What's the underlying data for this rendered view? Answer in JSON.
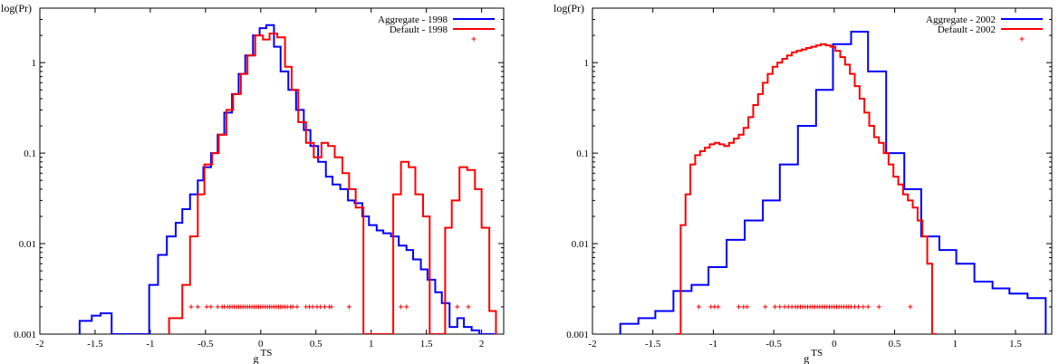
{
  "chart_data": [
    {
      "type": "line",
      "step": true,
      "title": "",
      "ylabel": "log(Pr)",
      "xlabel": "g",
      "xlabel_sub": "TS",
      "xlim": [
        -2,
        2.2
      ],
      "ylim": [
        0.001,
        4
      ],
      "yscale": "log",
      "xticks": [
        -2,
        -1.5,
        -1,
        -0.5,
        0,
        0.5,
        1,
        1.5,
        2
      ],
      "xtick_labels": [
        "-2",
        "-1.5",
        "-1",
        "-0.5",
        "0",
        "0.5",
        "1",
        "1.5",
        "2"
      ],
      "yticks": [
        0.001,
        0.01,
        0.1,
        1
      ],
      "ytick_labels": [
        "0.001",
        "0.01",
        "0.1",
        "1"
      ],
      "grid": false,
      "legend_position": "top-right",
      "series": [
        {
          "name": "Aggregate - 1998",
          "color": "#0000ff",
          "x": [
            -1.64,
            -1.53,
            -1.45,
            -1.35,
            -1.11,
            -1.01,
            -0.93,
            -0.85,
            -0.77,
            -0.71,
            -0.64,
            -0.57,
            -0.52,
            -0.45,
            -0.39,
            -0.33,
            -0.26,
            -0.2,
            -0.14,
            -0.07,
            -0.01,
            0.05,
            0.12,
            0.18,
            0.25,
            0.32,
            0.39,
            0.45,
            0.52,
            0.59,
            0.65,
            0.72,
            0.79,
            0.85,
            0.92,
            0.98,
            1.05,
            1.11,
            1.18,
            1.25,
            1.32,
            1.38,
            1.45,
            1.51,
            1.58,
            1.64,
            1.71,
            1.78,
            1.84,
            1.91,
            1.98,
            2.05
          ],
          "y": [
            0.0014,
            0.0016,
            0.0017,
            0.0009,
            0.0009,
            0.0035,
            0.0075,
            0.012,
            0.017,
            0.024,
            0.035,
            0.05,
            0.07,
            0.1,
            0.16,
            0.28,
            0.45,
            0.75,
            1.2,
            2.0,
            2.4,
            2.6,
            1.5,
            0.8,
            0.5,
            0.3,
            0.18,
            0.12,
            0.08,
            0.055,
            0.045,
            0.04,
            0.03,
            0.028,
            0.02,
            0.016,
            0.014,
            0.013,
            0.012,
            0.0095,
            0.0085,
            0.0067,
            0.0052,
            0.004,
            0.0029,
            0.0022,
            0.0012,
            0.0015,
            0.0012,
            0.0011,
            0.001,
            0.0007
          ]
        },
        {
          "name": "Default - 1998",
          "color": "#ff0000",
          "x": [
            -0.83,
            -0.71,
            -0.64,
            -0.57,
            -0.51,
            -0.44,
            -0.38,
            -0.31,
            -0.25,
            -0.18,
            -0.12,
            -0.05,
            0.02,
            0.08,
            0.15,
            0.22,
            0.28,
            0.34,
            0.41,
            0.48,
            0.55,
            0.61,
            0.67,
            0.74,
            0.8,
            0.86,
            0.93,
            1.13,
            1.2,
            1.27,
            1.34,
            1.4,
            1.47,
            1.53,
            1.6,
            1.67,
            1.73,
            1.8,
            1.87,
            1.94,
            2.0,
            2.07,
            2.1
          ],
          "y": [
            0.0015,
            0.0035,
            0.012,
            0.035,
            0.075,
            0.1,
            0.16,
            0.3,
            0.45,
            0.75,
            1.2,
            2.0,
            1.8,
            2.1,
            1.9,
            0.9,
            0.5,
            0.22,
            0.13,
            0.09,
            0.13,
            0.12,
            0.09,
            0.06,
            0.04,
            0.025,
            0.0004,
            0.0004,
            0.035,
            0.08,
            0.07,
            0.035,
            0.02,
            0.0004,
            0.0004,
            0.015,
            0.03,
            0.07,
            0.065,
            0.04,
            0.015,
            0.0018,
            0.0018
          ]
        },
        {
          "name": "",
          "type": "scatter",
          "marker": "+",
          "color": "#ff0000",
          "y_value": 0.002,
          "x": [
            -0.63,
            -0.57,
            -0.49,
            -0.45,
            -0.39,
            -0.35,
            -0.33,
            -0.3,
            -0.28,
            -0.26,
            -0.24,
            -0.22,
            -0.2,
            -0.18,
            -0.16,
            -0.14,
            -0.12,
            -0.1,
            -0.08,
            -0.06,
            -0.04,
            -0.02,
            0.0,
            0.02,
            0.04,
            0.06,
            0.08,
            0.1,
            0.12,
            0.14,
            0.16,
            0.18,
            0.2,
            0.22,
            0.24,
            0.27,
            0.29,
            0.33,
            0.41,
            0.44,
            0.47,
            0.51,
            0.54,
            0.58,
            0.62,
            0.64,
            0.8,
            1.27,
            1.32,
            1.78,
            1.88
          ]
        }
      ]
    },
    {
      "type": "line",
      "step": true,
      "title": "",
      "ylabel": "log(Pr)",
      "xlabel": "g",
      "xlabel_sub": "TS",
      "xlim": [
        -2,
        1.8
      ],
      "ylim": [
        0.001,
        4
      ],
      "yscale": "log",
      "xticks": [
        -2,
        -1.5,
        -1,
        -0.5,
        0,
        0.5,
        1,
        1.5
      ],
      "xtick_labels": [
        "-2",
        "-1.5",
        "-1",
        "-0.5",
        "0",
        "0.5",
        "1",
        "1.5"
      ],
      "yticks": [
        0.001,
        0.01,
        0.1,
        1
      ],
      "ytick_labels": [
        "0.001",
        "0.01",
        "0.1",
        "1"
      ],
      "grid": false,
      "legend_position": "top-right",
      "series": [
        {
          "name": "Aggregate - 2002",
          "color": "#0000ff",
          "x": [
            -1.77,
            -1.62,
            -1.48,
            -1.33,
            -1.18,
            -1.04,
            -0.89,
            -0.74,
            -0.59,
            -0.45,
            -0.3,
            -0.15,
            -0.01,
            0.14,
            0.28,
            0.43,
            0.58,
            0.72,
            0.87,
            1.01,
            1.16,
            1.31,
            1.45,
            1.6
          ],
          "y": [
            0.0013,
            0.0015,
            0.0018,
            0.003,
            0.0035,
            0.0055,
            0.011,
            0.018,
            0.03,
            0.075,
            0.2,
            0.5,
            1.6,
            2.2,
            0.8,
            0.1,
            0.04,
            0.012,
            0.0085,
            0.006,
            0.0038,
            0.0032,
            0.0028,
            0.0025
          ]
        },
        {
          "name": "Default - 2002",
          "color": "#ff0000",
          "x": [
            -1.31,
            -1.27,
            -1.23,
            -1.19,
            -1.15,
            -1.11,
            -1.07,
            -1.03,
            -0.99,
            -0.95,
            -0.91,
            -0.87,
            -0.83,
            -0.79,
            -0.75,
            -0.71,
            -0.67,
            -0.63,
            -0.59,
            -0.55,
            -0.51,
            -0.47,
            -0.43,
            -0.39,
            -0.35,
            -0.31,
            -0.27,
            -0.23,
            -0.19,
            -0.15,
            -0.11,
            -0.07,
            -0.03,
            0.01,
            0.05,
            0.09,
            0.13,
            0.17,
            0.21,
            0.25,
            0.29,
            0.33,
            0.37,
            0.41,
            0.45,
            0.49,
            0.53,
            0.57,
            0.61,
            0.65,
            0.69,
            0.73,
            0.77,
            0.81
          ],
          "y": [
            0.0005,
            0.016,
            0.035,
            0.075,
            0.095,
            0.105,
            0.115,
            0.125,
            0.13,
            0.125,
            0.12,
            0.13,
            0.145,
            0.16,
            0.19,
            0.25,
            0.34,
            0.45,
            0.6,
            0.75,
            0.9,
            1.0,
            1.1,
            1.2,
            1.3,
            1.35,
            1.4,
            1.45,
            1.5,
            1.55,
            1.6,
            1.55,
            1.5,
            1.35,
            1.15,
            0.95,
            0.75,
            0.55,
            0.4,
            0.28,
            0.2,
            0.15,
            0.13,
            0.1,
            0.075,
            0.055,
            0.045,
            0.035,
            0.03,
            0.025,
            0.018,
            0.012,
            0.006,
            0.0005
          ]
        },
        {
          "name": "",
          "type": "scatter",
          "marker": "+",
          "color": "#ff0000",
          "y_value": 0.002,
          "x": [
            -1.12,
            -1.02,
            -0.99,
            -0.96,
            -0.79,
            -0.75,
            -0.72,
            -0.57,
            -0.49,
            -0.45,
            -0.41,
            -0.38,
            -0.35,
            -0.32,
            -0.3,
            -0.28,
            -0.26,
            -0.24,
            -0.22,
            -0.2,
            -0.18,
            -0.16,
            -0.14,
            -0.12,
            -0.1,
            -0.08,
            -0.06,
            -0.04,
            -0.02,
            0.0,
            0.02,
            0.04,
            0.06,
            0.08,
            0.1,
            0.12,
            0.14,
            0.17,
            0.2,
            0.24,
            0.28,
            0.37,
            0.63
          ]
        }
      ]
    }
  ]
}
